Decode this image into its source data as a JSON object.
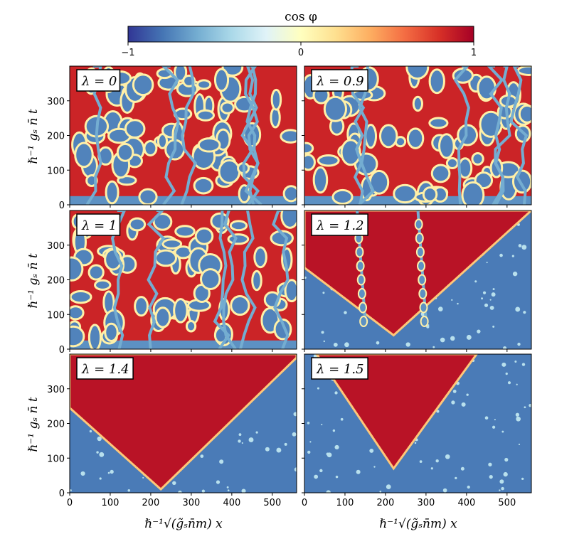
{
  "chart_data": {
    "type": "heatmap",
    "colorbar": {
      "title": "cos φ",
      "ticks": [
        "−1",
        "0",
        "1"
      ],
      "range": [
        -1,
        1
      ],
      "colormap": "RdYlBu_r",
      "colors": [
        "#313695",
        "#4575b4",
        "#74add1",
        "#abd9e9",
        "#e0f3f8",
        "#ffffbf",
        "#fee090",
        "#fdae61",
        "#f46d43",
        "#d73027",
        "#a50026"
      ]
    },
    "xlabel": "ℏ⁻¹√(g̃ₛn̄m) x",
    "ylabel": "ℏ⁻¹ gₛ n̄ t",
    "xlim": [
      0,
      560
    ],
    "ylim": [
      0,
      400
    ],
    "xticks": [
      "0",
      "100",
      "200",
      "300",
      "400",
      "500"
    ],
    "yticks": [
      "0",
      "100",
      "200",
      "300"
    ],
    "panels": [
      {
        "label": "λ = 0",
        "lambda": 0,
        "kind": "turbulent"
      },
      {
        "label": "λ = 0.9",
        "lambda": 0.9,
        "kind": "turbulent"
      },
      {
        "label": "λ = 1",
        "lambda": 1,
        "kind": "turbulent"
      },
      {
        "label": "λ = 1.2",
        "lambda": 1.2,
        "kind": "wedge",
        "apex_x": 220,
        "apex_t": 40,
        "left_edge_x0": 0,
        "left_edge_t0": 235,
        "right_edge_x1": 560,
        "right_edge_t1": 400,
        "walls_x": [
          150,
          300
        ]
      },
      {
        "label": "λ = 1.4",
        "lambda": 1.4,
        "kind": "wedge",
        "apex_x": 225,
        "apex_t": 10,
        "left_edge_x0": 0,
        "left_edge_t0": 245,
        "right_edge_x1": 560,
        "right_edge_t1": 390,
        "walls_x": []
      },
      {
        "label": "λ = 1.5",
        "lambda": 1.5,
        "kind": "wedge",
        "apex_x": 220,
        "apex_t": 70,
        "left_edge_x0": 30,
        "left_edge_t0": 400,
        "right_edge_x1": 425,
        "right_edge_t1": 400,
        "walls_x": []
      }
    ]
  }
}
